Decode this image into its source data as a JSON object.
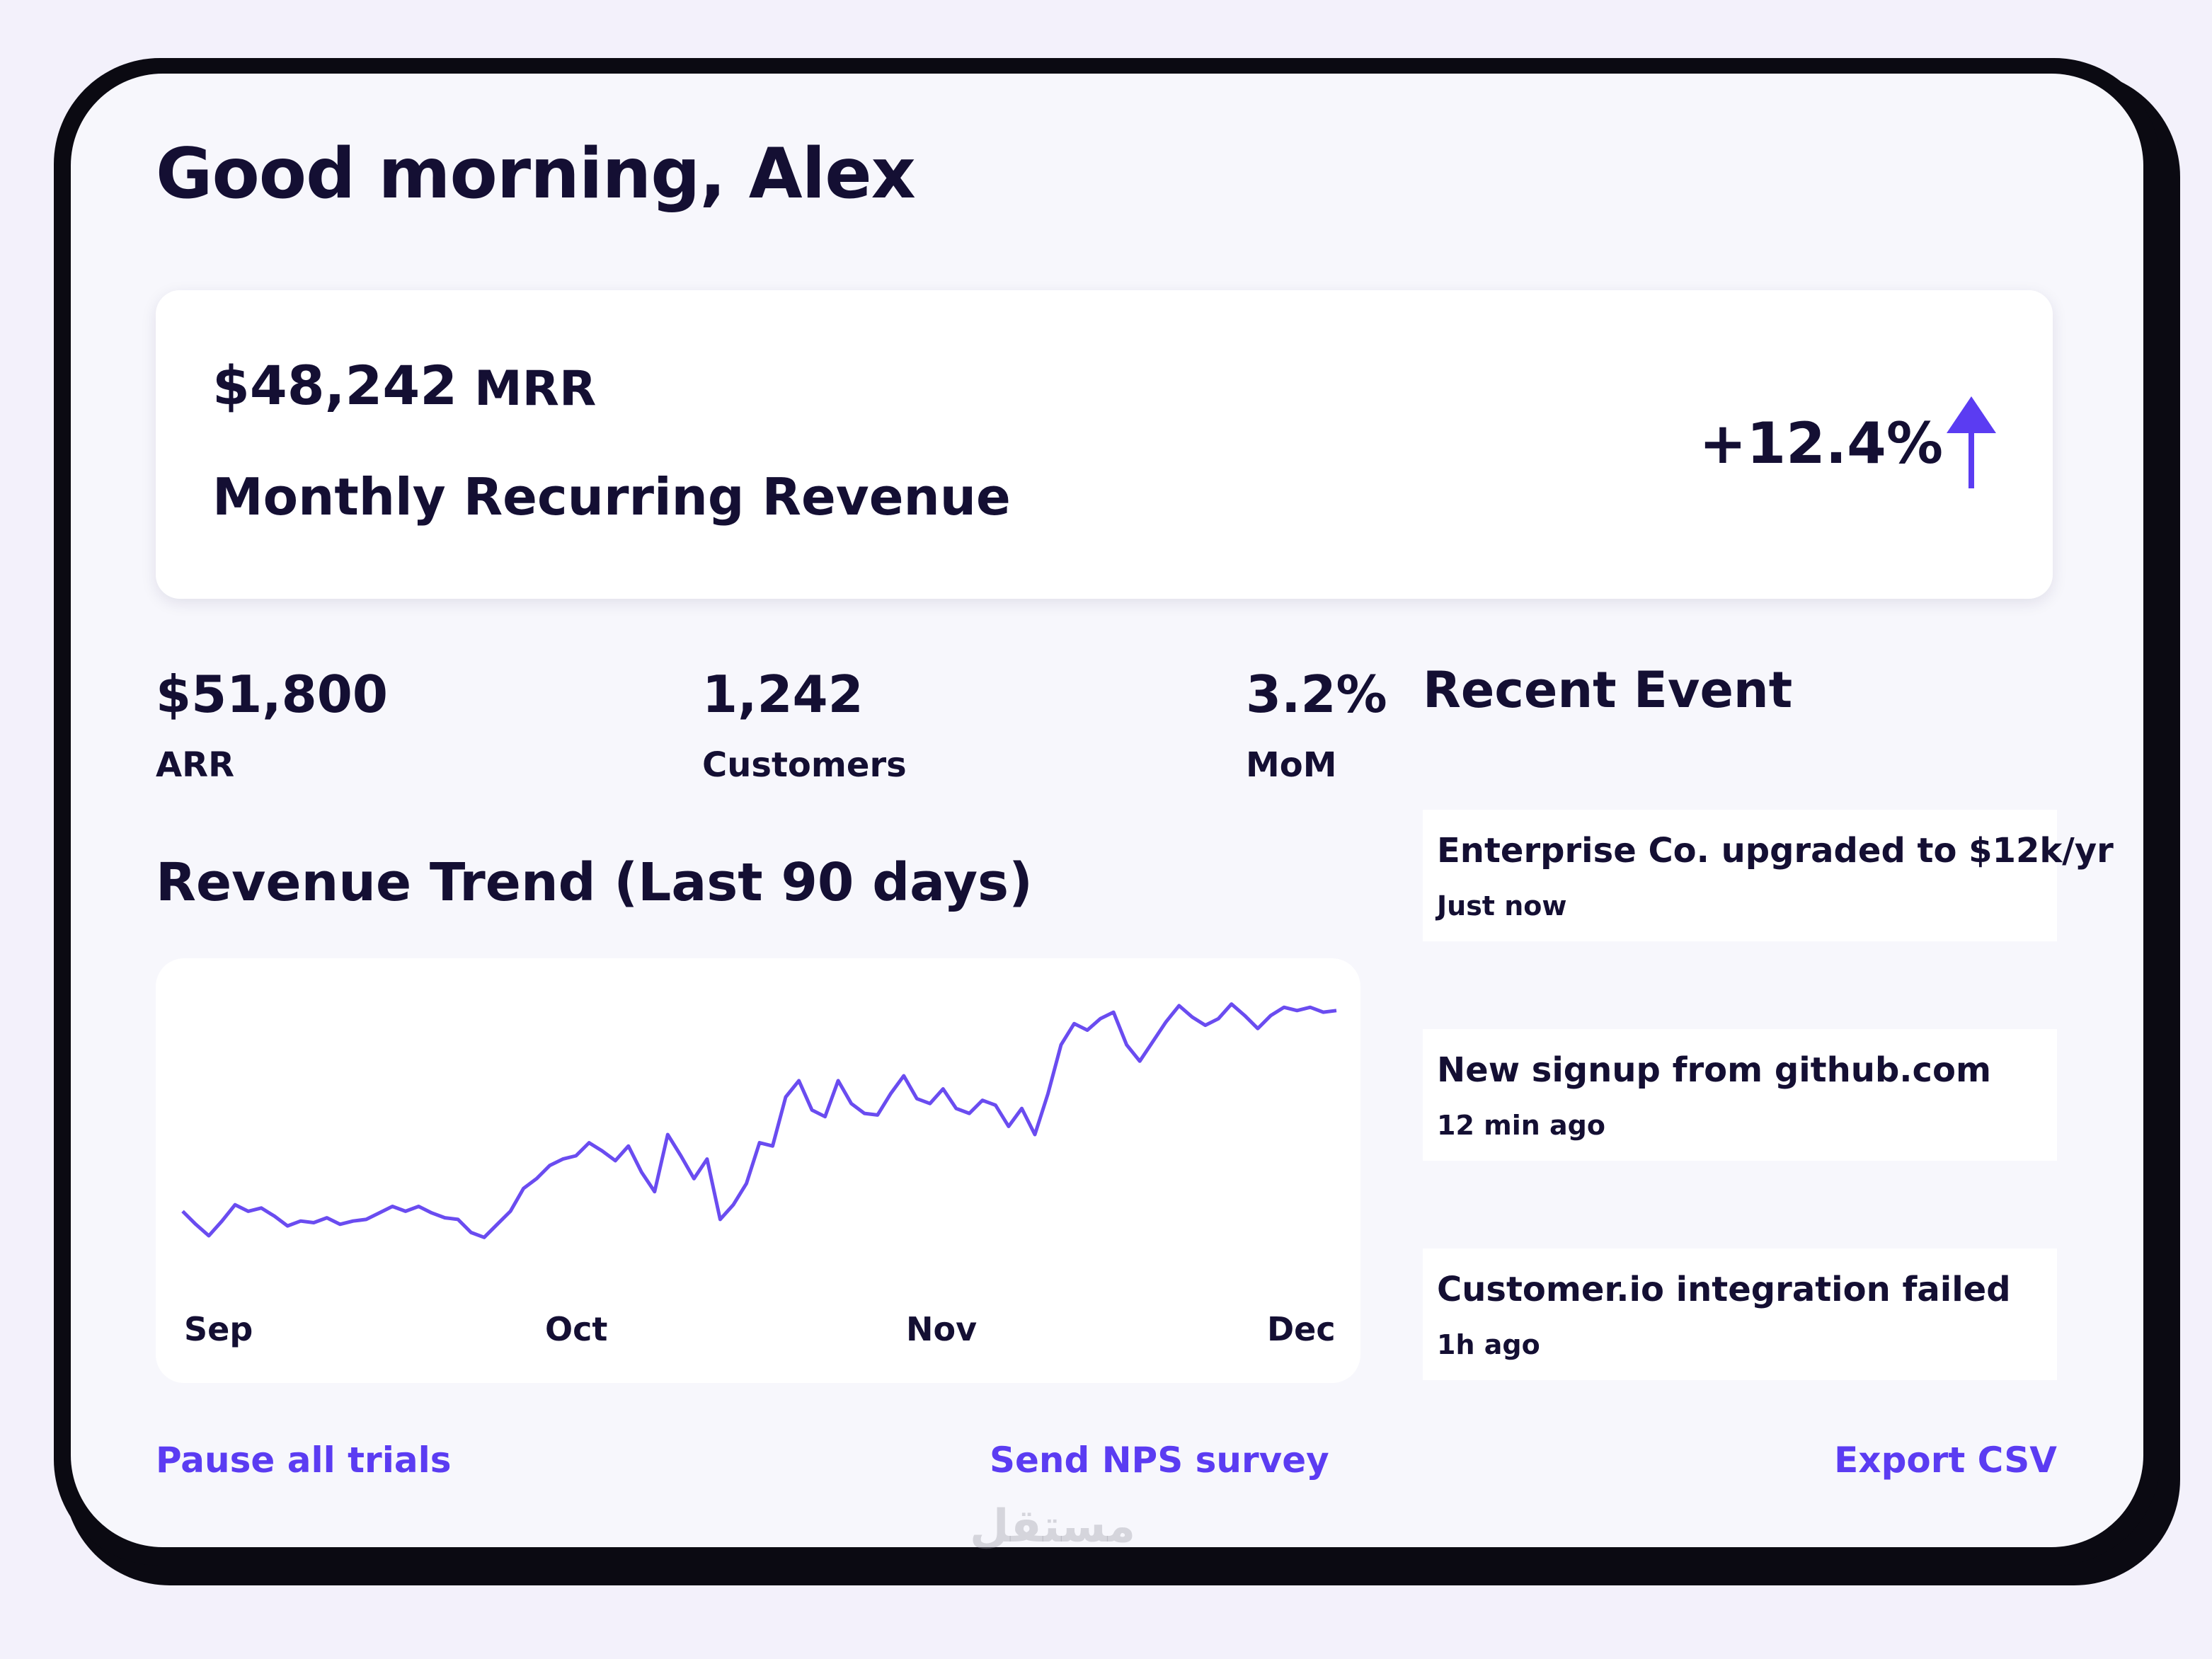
{
  "greeting": "Good morning, Alex",
  "mrr": {
    "value": "$48,242",
    "unit": "MRR",
    "label": "Monthly Recurring Revenue",
    "change": "+12.4%",
    "trend_icon": "arrow-up-icon",
    "accent": "#5b3cf2"
  },
  "stats": [
    {
      "value": "$51,800",
      "label": "ARR"
    },
    {
      "value": "1,242",
      "label": "Customers"
    },
    {
      "value": "3.2%",
      "label": "MoM"
    }
  ],
  "revenue_trend": {
    "title": "Revenue Trend (Last 90 days)"
  },
  "chart_data": {
    "type": "line",
    "title": "Revenue Trend (Last 90 days)",
    "x_ticks": [
      "Sep",
      "Oct",
      "Nov",
      "Dec"
    ],
    "series_color": "#6a4cf0",
    "series": [
      {
        "values": [
          38,
          30,
          23,
          32,
          42,
          38,
          40,
          35,
          29,
          32,
          31,
          34,
          30,
          32,
          33,
          37,
          41,
          38,
          41,
          37,
          34,
          33,
          25,
          22,
          30,
          38,
          52,
          58,
          66,
          70,
          72,
          80,
          75,
          69,
          78,
          62,
          50,
          85,
          72,
          58,
          70,
          33,
          42,
          55,
          80,
          78,
          108,
          118,
          100,
          96,
          118,
          104,
          98,
          97,
          110,
          121,
          107,
          104,
          113,
          101,
          98,
          106,
          103,
          90,
          101,
          85,
          110,
          140,
          153,
          149,
          156,
          160,
          140,
          130,
          142,
          154,
          164,
          157,
          152,
          156,
          165,
          158,
          150,
          158,
          163,
          161,
          163,
          160,
          161
        ]
      }
    ],
    "ylim": [
      0,
      180
    ],
    "grid": false,
    "legend": "none"
  },
  "recent_events": {
    "title": "Recent Event",
    "items": [
      {
        "text": "Enterprise Co. upgraded to $12k/yr",
        "time": "Just now"
      },
      {
        "text": "New signup from github.com",
        "time": "12 min ago"
      },
      {
        "text": "Customer.io integration failed",
        "time": "1h ago"
      }
    ]
  },
  "actions": {
    "pause_trials": "Pause all trials",
    "send_nps": "Send NPS survey",
    "export_csv": "Export CSV"
  },
  "watermark": "مستقل"
}
